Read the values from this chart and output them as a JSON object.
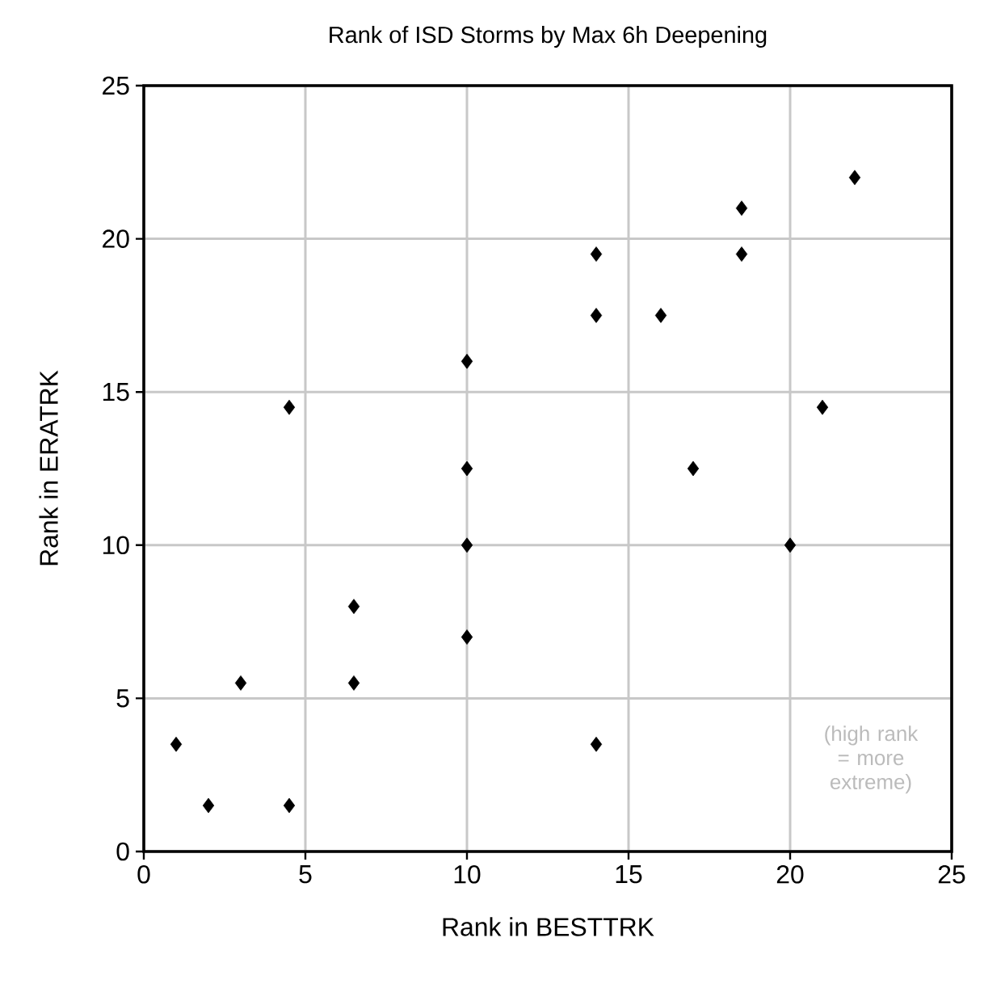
{
  "chart_data": {
    "type": "scatter",
    "title": "Rank of ISD Storms by Max 6h Deepening",
    "xlabel": "Rank in BESTTRK",
    "ylabel": "Rank in ERATRK",
    "annotations": [
      "(high rank = more extreme)"
    ],
    "series": [
      {
        "color": "#000000",
        "x": [
          1,
          2,
          3,
          4.5,
          4.5,
          6.5,
          6.5,
          10,
          10,
          10,
          10,
          14,
          14,
          14,
          16,
          17,
          18.5,
          18.5,
          20,
          21,
          22
        ],
        "values": [
          3.5,
          1.5,
          5.5,
          1.5,
          14.5,
          5.5,
          8,
          7,
          10,
          12.5,
          16,
          3.5,
          17.5,
          19.5,
          17.5,
          12.5,
          19.5,
          21,
          10,
          14.5,
          22
        ]
      }
    ],
    "xlim": [
      0,
      25
    ],
    "ylim": [
      0,
      25
    ],
    "xticks": [
      0,
      5,
      10,
      15,
      20,
      25
    ],
    "yticks": [
      0,
      5,
      10,
      15,
      20,
      25
    ],
    "grid": true,
    "marker": "diamond"
  }
}
